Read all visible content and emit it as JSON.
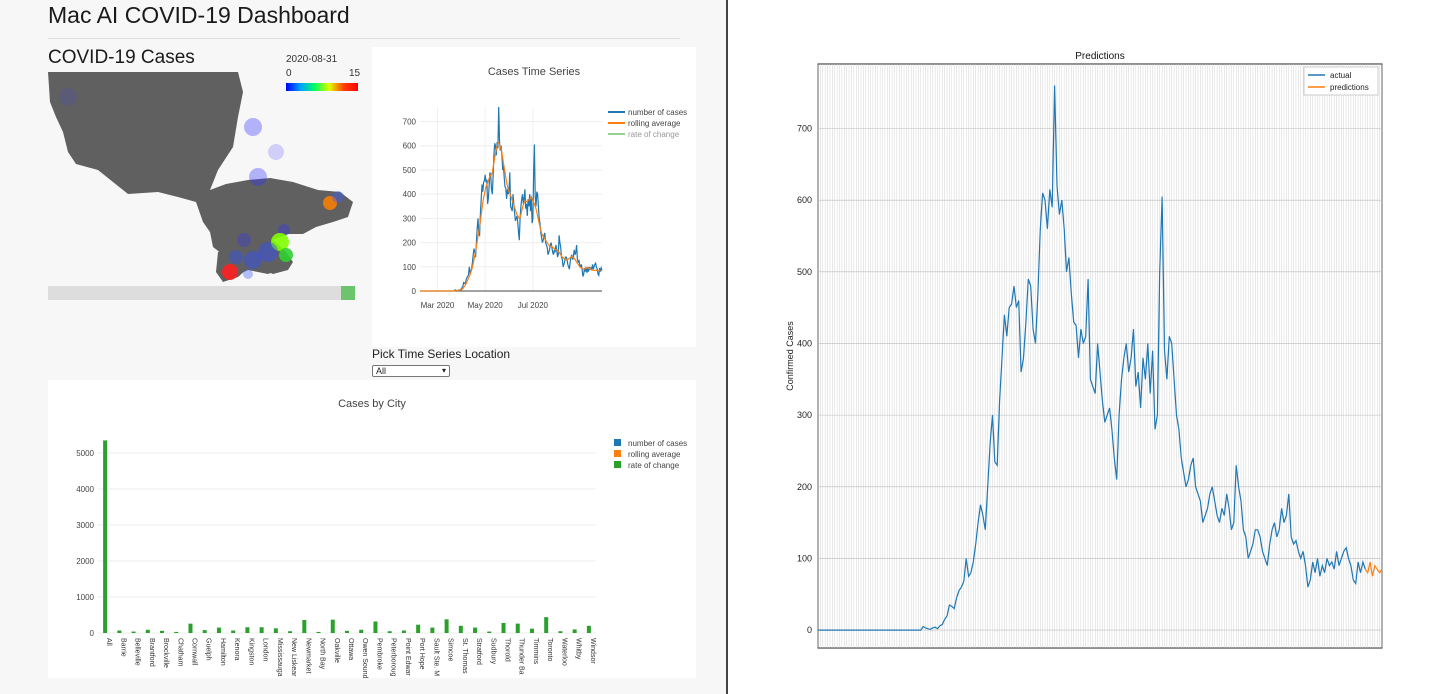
{
  "dashboard": {
    "title": "Mac AI COVID-19 Dashboard",
    "section_title": "COVID-19 Cases",
    "colorbar": {
      "date": "2020-08-31",
      "min": "0",
      "max": "15"
    },
    "pick_label": "Pick Time Series Location",
    "pick_value": "All"
  },
  "chart_data": [
    {
      "type": "line",
      "title": "Cases Time Series",
      "x_ticks": [
        "Mar 2020",
        "May 2020",
        "Jul 2020"
      ],
      "y_ticks": [
        0,
        100,
        200,
        300,
        400,
        500,
        600,
        700
      ],
      "ylim": [
        0,
        760
      ],
      "legend": [
        "number of cases",
        "rolling average",
        "rate of change"
      ],
      "legend_position": "top-right",
      "colors": [
        "#1f77b4",
        "#ff7f0e",
        "#2ca02c"
      ],
      "series": [
        {
          "name": "number of cases",
          "values": [
            0,
            0,
            0,
            0,
            0,
            0,
            0,
            0,
            0,
            0,
            0,
            0,
            0,
            0,
            0,
            0,
            0,
            0,
            0,
            0,
            0,
            0,
            0,
            0,
            0,
            0,
            0,
            0,
            0,
            0,
            0,
            0,
            0,
            0,
            0,
            0,
            0,
            0,
            0,
            0,
            0,
            0,
            0,
            0,
            5,
            3,
            2,
            1,
            3,
            4,
            2,
            6,
            8,
            15,
            20,
            35,
            33,
            30,
            45,
            55,
            60,
            68,
            100,
            75,
            80,
            95,
            120,
            150,
            175,
            160,
            140,
            200,
            260,
            300,
            235,
            230,
            320,
            380,
            440,
            410,
            450,
            455,
            480,
            450,
            460,
            360,
            380,
            430,
            490,
            480,
            420,
            400,
            470,
            560,
            610,
            600,
            560,
            615,
            590,
            760,
            620,
            580,
            600,
            560,
            500,
            520,
            470,
            430,
            425,
            380,
            420,
            400,
            410,
            490,
            350,
            340,
            330,
            400,
            360,
            320,
            290,
            300,
            310,
            280,
            240,
            210,
            300,
            350,
            380,
            400,
            360,
            380,
            420,
            340,
            360,
            310,
            380,
            350,
            400,
            330,
            390,
            280,
            300,
            500,
            605,
            390,
            350,
            410,
            400,
            350,
            300,
            280,
            240,
            220,
            200,
            210,
            230,
            240,
            200,
            190,
            180,
            150,
            160,
            170,
            190,
            200,
            180,
            160,
            150,
            170,
            160,
            190,
            170,
            140,
            150,
            230,
            200,
            180,
            140,
            130,
            100,
            110,
            120,
            140,
            140,
            130,
            110,
            100,
            90,
            120,
            140,
            150,
            130,
            140,
            170,
            150,
            160,
            190,
            130,
            120,
            125,
            110,
            100,
            110,
            90,
            60,
            70,
            95,
            80,
            100,
            75,
            90,
            80,
            100,
            90,
            95,
            85,
            110,
            90,
            100,
            110,
            115,
            100,
            90,
            70,
            65,
            95,
            80,
            95,
            85
          ]
        },
        {
          "name": "rolling average",
          "values": [
            0,
            0,
            0,
            0,
            0,
            0,
            0,
            0,
            0,
            0,
            0,
            0,
            0,
            0,
            0,
            0,
            0,
            0,
            0,
            0,
            0,
            0,
            0,
            0,
            0,
            0,
            0,
            0,
            0,
            0,
            0,
            0,
            0,
            0,
            0,
            0,
            0,
            0,
            0,
            0,
            0,
            0,
            0,
            0,
            2,
            3,
            3,
            3,
            3,
            3,
            3,
            4,
            5,
            7,
            10,
            15,
            20,
            25,
            30,
            38,
            45,
            53,
            60,
            68,
            78,
            88,
            100,
            115,
            130,
            148,
            165,
            185,
            205,
            225,
            245,
            265,
            290,
            315,
            340,
            365,
            385,
            400,
            415,
            430,
            440,
            445,
            455,
            465,
            470,
            480,
            480,
            490,
            510,
            530,
            550,
            570,
            585,
            600,
            610,
            612,
            605,
            595,
            585,
            570,
            550,
            530,
            510,
            490,
            470,
            450,
            435,
            420,
            410,
            405,
            395,
            385,
            375,
            365,
            355,
            345,
            335,
            325,
            315,
            310,
            305,
            300,
            305,
            315,
            330,
            345,
            355,
            365,
            370,
            370,
            370,
            370,
            375,
            375,
            380,
            385,
            390,
            380,
            370,
            365,
            360,
            350,
            340,
            325,
            310,
            295,
            280,
            265,
            250,
            240,
            230,
            225,
            220,
            215,
            210,
            205,
            200,
            195,
            190,
            185,
            185,
            185,
            185,
            180,
            178,
            175,
            172,
            170,
            170,
            168,
            165,
            160,
            155,
            150,
            145,
            140,
            138,
            135,
            132,
            130,
            128,
            128,
            130,
            132,
            135,
            138,
            140,
            142,
            140,
            138,
            135,
            130,
            125,
            120,
            115,
            110,
            105,
            100,
            98,
            96,
            94,
            92,
            90,
            90,
            92,
            94,
            96,
            98,
            96,
            94,
            92,
            90,
            88,
            86,
            85,
            85,
            85,
            85,
            85,
            84,
            84,
            85,
            85,
            85
          ]
        }
      ]
    },
    {
      "type": "bar",
      "title": "Cases by City",
      "legend": [
        "number of cases",
        "rolling average",
        "rate of change"
      ],
      "legend_position": "top-right",
      "colors": [
        "#1f77b4",
        "#ff7f0e",
        "#2ca02c"
      ],
      "y_ticks": [
        0,
        1000,
        2000,
        3000,
        4000,
        5000
      ],
      "ylim": [
        0,
        5500
      ],
      "categories": [
        "All",
        "Barrie",
        "Belleville",
        "Brantford",
        "Brockville",
        "Chatham",
        "Cornwall",
        "Guelph",
        "Hamilton",
        "Kenora",
        "Kingston",
        "London",
        "Mississauga",
        "New Liskear",
        "Newmarket",
        "North Bay",
        "Oakville",
        "Ottawa",
        "Owen Sound",
        "Pembroke",
        "Peterboroug",
        "Point Edwar",
        "Port Hope",
        "Sault Ste. M",
        "Simcoe",
        "St. Thomas",
        "Stratford",
        "Sudbury",
        "Thorold",
        "Thunder Ba",
        "Timmins",
        "Toronto",
        "Waterloo",
        "Whitby",
        "Windsor"
      ],
      "values": [
        5350,
        70,
        40,
        90,
        60,
        30,
        260,
        80,
        150,
        70,
        160,
        160,
        130,
        50,
        360,
        30,
        370,
        60,
        90,
        320,
        50,
        70,
        230,
        150,
        380,
        200,
        150,
        40,
        280,
        260,
        120,
        440,
        50,
        100,
        200
      ]
    },
    {
      "type": "line",
      "title": "Predictions",
      "ylabel": "Confirmed Cases",
      "y_ticks": [
        0,
        100,
        200,
        300,
        400,
        500,
        600,
        700
      ],
      "ylim": [
        -25,
        790
      ],
      "legend": [
        "actual",
        "predictions"
      ],
      "legend_position": "top-right",
      "colors": [
        "#1f77b4",
        "#ff7f0e"
      ],
      "series": [
        {
          "name": "actual",
          "source": "same as Cases Time Series / number of cases"
        },
        {
          "name": "predictions",
          "values": [
            80,
            95,
            75,
            90,
            85,
            80,
            85
          ]
        }
      ]
    }
  ]
}
